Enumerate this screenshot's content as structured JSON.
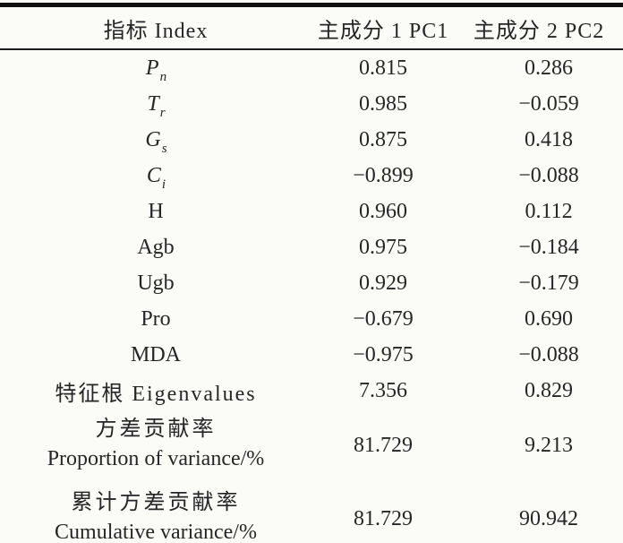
{
  "table": {
    "columns": [
      {
        "label": "指标 Index"
      },
      {
        "label": "主成分 1 PC1"
      },
      {
        "label": "主成分 2 PC2"
      }
    ],
    "rows": [
      {
        "label": "P",
        "sub": "n",
        "pc1": "0.815",
        "pc2": "0.286"
      },
      {
        "label": "T",
        "sub": "r",
        "pc1": "0.985",
        "pc2": "−0.059"
      },
      {
        "label": "G",
        "sub": "s",
        "pc1": "0.875",
        "pc2": "0.418"
      },
      {
        "label": "C",
        "sub": "i",
        "pc1": "−0.899",
        "pc2": "−0.088"
      },
      {
        "label": "H",
        "pc1": "0.960",
        "pc2": "0.112"
      },
      {
        "label": "Agb",
        "pc1": "0.975",
        "pc2": "−0.184"
      },
      {
        "label": "Ugb",
        "pc1": "0.929",
        "pc2": "−0.179"
      },
      {
        "label": "Pro",
        "pc1": "−0.679",
        "pc2": "0.690"
      },
      {
        "label": "MDA",
        "pc1": "−0.975",
        "pc2": "−0.088"
      },
      {
        "label": "特征根 Eigenvalues",
        "pc1": "7.356",
        "pc2": "0.829"
      },
      {
        "label": "方差贡献率",
        "label_line2": "Proportion of variance/%",
        "pc1": "81.729",
        "pc2": "9.213"
      },
      {
        "label": "累计方差贡献率",
        "label_line2": "Cumulative variance/%",
        "pc1": "81.729",
        "pc2": "90.942"
      }
    ],
    "colors": {
      "background": "#fbfbf8",
      "text": "#262626",
      "rule": "#101010"
    }
  }
}
